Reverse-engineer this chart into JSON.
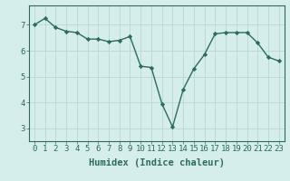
{
  "x": [
    0,
    1,
    2,
    3,
    4,
    5,
    6,
    7,
    8,
    9,
    10,
    11,
    12,
    13,
    14,
    15,
    16,
    17,
    18,
    19,
    20,
    21,
    22,
    23
  ],
  "y": [
    7.0,
    7.25,
    6.9,
    6.75,
    6.7,
    6.45,
    6.45,
    6.35,
    6.4,
    6.55,
    5.4,
    5.35,
    3.95,
    3.05,
    4.5,
    5.3,
    5.85,
    6.65,
    6.7,
    6.7,
    6.7,
    6.3,
    5.75,
    5.6
  ],
  "line_color": "#2d6b5e",
  "marker": "D",
  "markersize": 2.2,
  "linewidth": 1.0,
  "xlabel": "Humidex (Indice chaleur)",
  "xlabel_fontsize": 7.5,
  "ylim": [
    2.5,
    7.75
  ],
  "xlim": [
    -0.5,
    23.5
  ],
  "yticks": [
    3,
    4,
    5,
    6,
    7
  ],
  "xticks": [
    0,
    1,
    2,
    3,
    4,
    5,
    6,
    7,
    8,
    9,
    10,
    11,
    12,
    13,
    14,
    15,
    16,
    17,
    18,
    19,
    20,
    21,
    22,
    23
  ],
  "background_color": "#d5eeec",
  "grid_color": "#b8d8d5",
  "tick_fontsize": 6.5,
  "spine_color": "#2d6b5e"
}
